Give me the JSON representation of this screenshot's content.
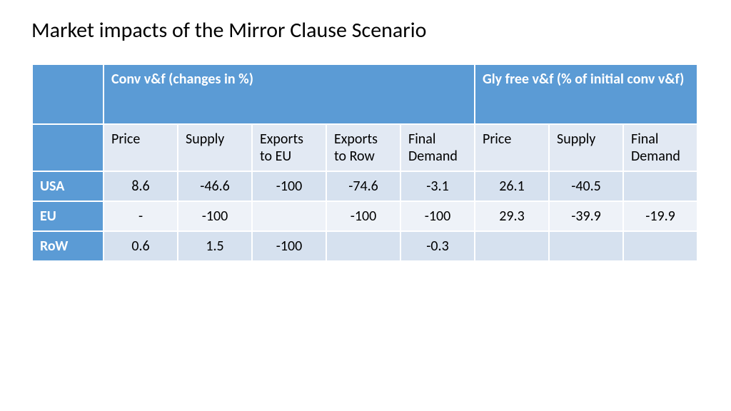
{
  "title": "Market impacts of the Mirror Clause Scenario",
  "table": {
    "group_headers": {
      "conv": "Conv v&f (changes in %)",
      "gly": "Gly free v&f (% of initial conv v&f)"
    },
    "sub_headers": {
      "conv": [
        "Price",
        "Supply",
        "Exports to EU",
        "Exports to Row",
        "Final Demand"
      ],
      "gly": [
        "Price",
        "Supply",
        "Final Demand"
      ]
    },
    "row_labels": [
      "USA",
      "EU",
      "RoW"
    ],
    "rows": [
      [
        "8.6",
        "-46.6",
        "-100",
        "-74.6",
        "-3.1",
        "26.1",
        "-40.5",
        ""
      ],
      [
        "-",
        "-100",
        "",
        "-100",
        "-100",
        "29.3",
        "-39.9",
        "-19.9"
      ],
      [
        "0.6",
        "1.5",
        "-100",
        "",
        "-0.3",
        "",
        "",
        ""
      ]
    ],
    "colors": {
      "header_bg": "#5b9bd5",
      "header_fg": "#ffffff",
      "subheader_bg": "#e2e9f3",
      "row_even_bg": "#eef2f8",
      "row_odd_bg": "#d6e1ef",
      "border": "#ffffff",
      "text": "#000000"
    },
    "font_size_title_pt": 22,
    "font_size_cell_pt": 15
  }
}
